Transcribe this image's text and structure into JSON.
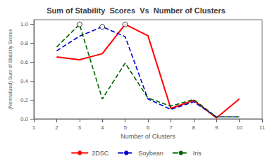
{
  "chart_data": {
    "type": "line",
    "title": "Sum of Stability  Scores  Vs  Number of Clusters",
    "xlabel": "Number of Clusters",
    "ylabel": "(Normalized) Sum of Stability Scores",
    "xlim": [
      1,
      11
    ],
    "ylim": [
      0,
      1.05
    ],
    "xticks": [
      1,
      2,
      3,
      4,
      5,
      6,
      7,
      8,
      9,
      10,
      11
    ],
    "yticks": [
      {
        "value": 0,
        "label": "0.0"
      },
      0.2,
      0.4,
      0.6,
      0.8,
      {
        "value": 1.0,
        "label": "1.0"
      }
    ],
    "grid": false,
    "legend": "bottom",
    "series": [
      {
        "name": "2DSC",
        "type": "line",
        "color": "#ff0000",
        "line_style": "solid",
        "x": [
          2,
          3,
          4,
          5,
          6,
          7,
          8,
          9,
          10
        ],
        "values": [
          0.655,
          0.625,
          0.69,
          1.0,
          0.88,
          0.11,
          0.195,
          0.01,
          0.21
        ]
      },
      {
        "name": "Soybean",
        "type": "line",
        "color": "#0000cc",
        "line_style": "dashed",
        "x": [
          2,
          3,
          4,
          5,
          6,
          7,
          8,
          9,
          10
        ],
        "values": [
          0.72,
          0.875,
          0.975,
          0.87,
          0.21,
          0.1,
          0.18,
          0.02,
          0.02
        ]
      },
      {
        "name": "Iris",
        "type": "line",
        "color": "#006600",
        "line_style": "dashed",
        "x": [
          2,
          3,
          4,
          5,
          6,
          7,
          8,
          9,
          10
        ],
        "values": [
          0.76,
          1.0,
          0.21,
          0.59,
          0.22,
          0.135,
          0.205,
          0.02,
          0.02
        ]
      },
      {
        "type": "scatter",
        "marker": "circle",
        "color": "#ffffff",
        "x": [
          3,
          4,
          5
        ],
        "values": [
          1.0,
          0.975,
          1.0
        ]
      }
    ]
  }
}
